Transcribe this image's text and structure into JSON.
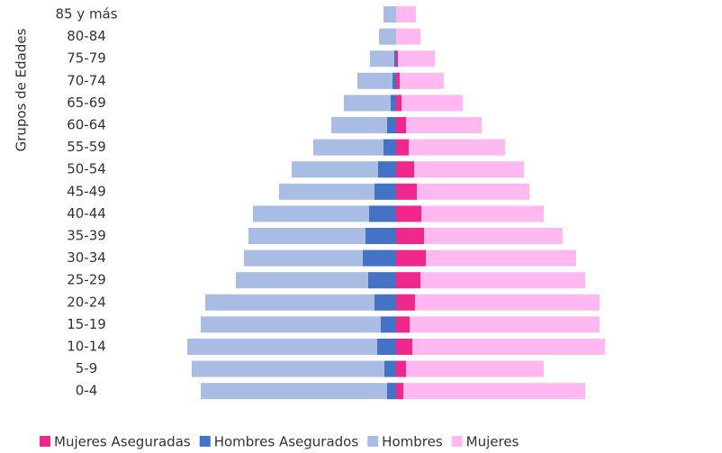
{
  "chart_data": {
    "type": "pyramid",
    "y_label": "Grupos de Edades",
    "categories": [
      "85 y más",
      "80-84",
      "75-79",
      "70-74",
      "65-69",
      "60-64",
      "55-59",
      "50-54",
      "45-49",
      "40-44",
      "35-39",
      "30-34",
      "25-29",
      "20-24",
      "15-19",
      "10-14",
      "5-9",
      "0-4"
    ],
    "xlim": [
      -235,
      235
    ],
    "legend": "bottom",
    "series": [
      {
        "name": "Mujeres Aseguradas",
        "color": "#f0288c",
        "side": "right",
        "layer": "front",
        "values": [
          0,
          0,
          2,
          4,
          6,
          11,
          14,
          20,
          23,
          28,
          31,
          33,
          27,
          21,
          15,
          18,
          11,
          8
        ]
      },
      {
        "name": "Hombres Asegurados",
        "color": "#4472c4",
        "side": "left",
        "layer": "front",
        "values": [
          0,
          0,
          2,
          4,
          6,
          10,
          14,
          20,
          24,
          30,
          34,
          37,
          31,
          24,
          17,
          21,
          13,
          10
        ]
      },
      {
        "name": "Hombres",
        "color": "#a9bce4",
        "side": "left",
        "layer": "back",
        "values": [
          14,
          19,
          29,
          43,
          58,
          72,
          92,
          116,
          130,
          159,
          164,
          169,
          178,
          212,
          217,
          232,
          227,
          217
        ]
      },
      {
        "name": "Mujeres",
        "color": "#ffb8f0",
        "side": "right",
        "layer": "back",
        "values": [
          22,
          27,
          43,
          53,
          74,
          95,
          121,
          142,
          148,
          164,
          185,
          200,
          210,
          226,
          226,
          232,
          164,
          210
        ]
      }
    ]
  }
}
